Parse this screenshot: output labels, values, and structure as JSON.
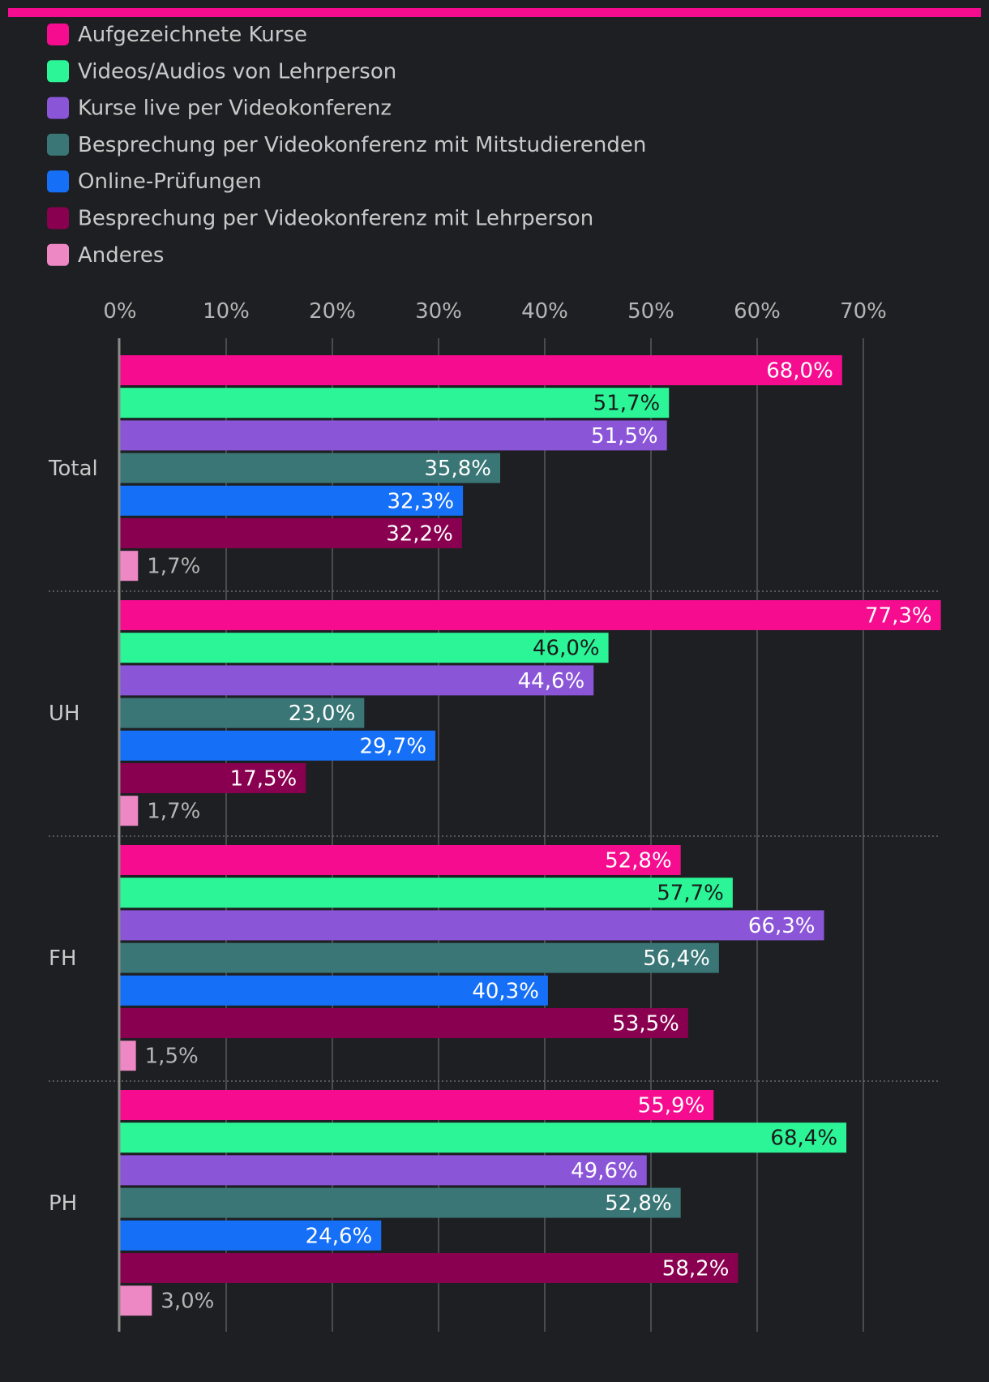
{
  "colors": {
    "background": "#1e1f22",
    "accent": "#f50c8f",
    "text": "#c9c9c9",
    "grid": "#5a5a5a"
  },
  "chart_data": {
    "type": "bar",
    "orientation": "horizontal",
    "categories": [
      "Total",
      "UH",
      "FH",
      "PH"
    ],
    "series": [
      {
        "name": "Aufgezeichnete Kurse",
        "color": "#f50c8f",
        "label_color": "#ffffff",
        "values": [
          68.0,
          77.3,
          52.8,
          55.9
        ],
        "labels": [
          "68,0%",
          "77,3%",
          "52,8%",
          "55,9%"
        ]
      },
      {
        "name": "Videos/Audios von Lehrperson",
        "color": "#2bf597",
        "label_color": "#1a1a1a",
        "values": [
          51.7,
          46.0,
          57.7,
          68.4
        ],
        "labels": [
          "51,7%",
          "46,0%",
          "57,7%",
          "68,4%"
        ]
      },
      {
        "name": "Kurse live per Videokonferenz",
        "color": "#8b55d8",
        "label_color": "#ffffff",
        "values": [
          51.5,
          44.6,
          66.3,
          49.6
        ],
        "labels": [
          "51,5%",
          "44,6%",
          "66,3%",
          "49,6%"
        ]
      },
      {
        "name": "Besprechung per Videokonferenz mit Mitstudierenden",
        "color": "#3a7676",
        "label_color": "#ffffff",
        "values": [
          35.8,
          23.0,
          56.4,
          52.8
        ],
        "labels": [
          "35,8%",
          "23,0%",
          "56,4%",
          "52,8%"
        ]
      },
      {
        "name": "Online-Prüfungen",
        "color": "#1570f7",
        "label_color": "#ffffff",
        "values": [
          32.3,
          29.7,
          40.3,
          24.6
        ],
        "labels": [
          "32,3%",
          "29,7%",
          "40,3%",
          "24,6%"
        ]
      },
      {
        "name": "Besprechung per Videokonferenz mit Lehrperson",
        "color": "#8a0050",
        "label_color": "#ffffff",
        "values": [
          32.2,
          17.5,
          53.5,
          58.2
        ],
        "labels": [
          "32,2%",
          "17,5%",
          "53,5%",
          "58,2%"
        ]
      },
      {
        "name": "Anderes",
        "color": "#ee88c5",
        "label_color": "#b5b5b5",
        "values": [
          1.7,
          1.7,
          1.5,
          3.0
        ],
        "labels": [
          "1,7%",
          "1,7%",
          "1,5%",
          "3,0%"
        ]
      }
    ],
    "x_ticks": [
      0,
      10,
      20,
      30,
      40,
      50,
      60,
      70
    ],
    "x_tick_labels": [
      "0%",
      "10%",
      "20%",
      "30%",
      "40%",
      "50%",
      "60%",
      "70%"
    ],
    "xlim": [
      0,
      77.3
    ],
    "axis_position": "top",
    "grid": true,
    "legend_position": "top-left",
    "title": "",
    "xlabel": "",
    "ylabel": ""
  }
}
